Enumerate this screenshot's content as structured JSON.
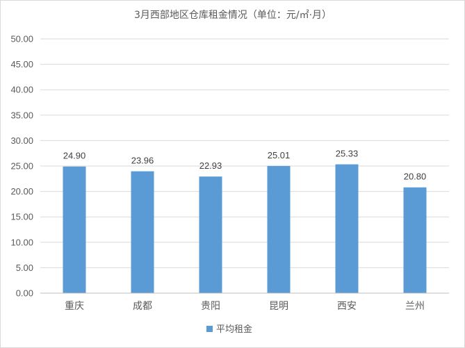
{
  "chart_data": {
    "type": "bar",
    "title": "3月西部地区仓库租金情况（单位：元/㎡·月）",
    "categories": [
      "重庆",
      "成都",
      "贵阳",
      "昆明",
      "西安",
      "兰州"
    ],
    "series": [
      {
        "name": "平均租金",
        "values": [
          24.9,
          23.96,
          22.93,
          25.01,
          25.33,
          20.8
        ],
        "labels": [
          "24.90",
          "23.96",
          "22.93",
          "25.01",
          "25.33",
          "20.80"
        ],
        "color": "#5b9bd5"
      }
    ],
    "ylim": [
      0,
      50
    ],
    "yticks": [
      "0.00",
      "5.00",
      "10.00",
      "15.00",
      "20.00",
      "25.00",
      "30.00",
      "35.00",
      "40.00",
      "45.00",
      "50.00"
    ],
    "grid": true,
    "legend_position": "bottom"
  }
}
